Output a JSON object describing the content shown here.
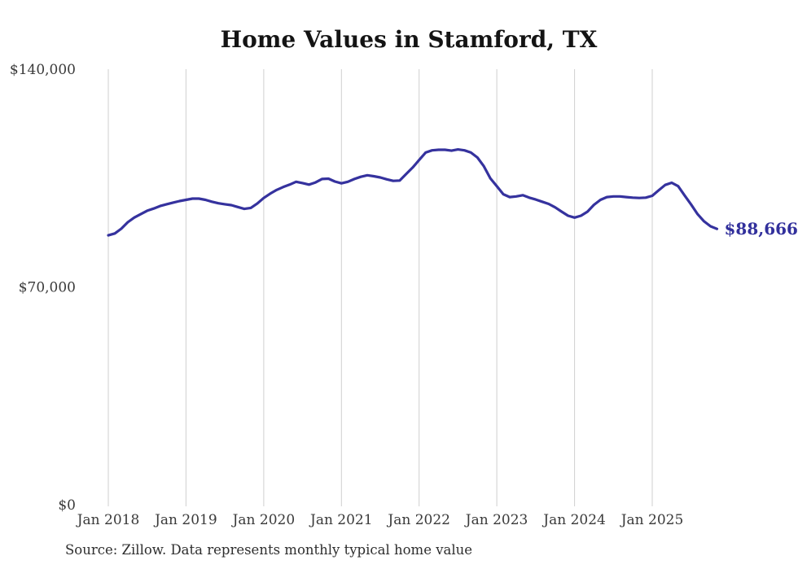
{
  "page": {
    "background": "#ffffff"
  },
  "chart_data": {
    "type": "line",
    "title": "Home Values in Stamford, TX",
    "source_note": "Source: Zillow. Data represents monthly typical home value",
    "end_value_label": "$88,666",
    "end_value": 88666,
    "xlabel": "",
    "ylabel": "",
    "ylim": [
      0,
      140000
    ],
    "grid": "vertical-only",
    "legend": "none",
    "y_ticks": [
      {
        "label": "$140,000",
        "value": 140000
      },
      {
        "label": "$70,000",
        "value": 70000
      },
      {
        "label": "$0",
        "value": 0
      }
    ],
    "x_ticks": [
      {
        "label": "Jan 2018",
        "month_index": 0
      },
      {
        "label": "Jan 2019",
        "month_index": 12
      },
      {
        "label": "Jan 2020",
        "month_index": 24
      },
      {
        "label": "Jan 2021",
        "month_index": 36
      },
      {
        "label": "Jan 2022",
        "month_index": 48
      },
      {
        "label": "Jan 2023",
        "month_index": 60
      },
      {
        "label": "Jan 2024",
        "month_index": 72
      },
      {
        "label": "Jan 2025",
        "month_index": 84
      }
    ],
    "series": [
      {
        "name": "Monthly typical home value",
        "x": [
          "2018-01",
          "2018-02",
          "2018-03",
          "2018-04",
          "2018-05",
          "2018-06",
          "2018-07",
          "2018-08",
          "2018-09",
          "2018-10",
          "2018-11",
          "2018-12",
          "2019-01",
          "2019-02",
          "2019-03",
          "2019-04",
          "2019-05",
          "2019-06",
          "2019-07",
          "2019-08",
          "2019-09",
          "2019-10",
          "2019-11",
          "2019-12",
          "2020-01",
          "2020-02",
          "2020-03",
          "2020-04",
          "2020-05",
          "2020-06",
          "2020-07",
          "2020-08",
          "2020-09",
          "2020-10",
          "2020-11",
          "2020-12",
          "2021-01",
          "2021-02",
          "2021-03",
          "2021-04",
          "2021-05",
          "2021-06",
          "2021-07",
          "2021-08",
          "2021-09",
          "2021-10",
          "2021-11",
          "2021-12",
          "2022-01",
          "2022-02",
          "2022-03",
          "2022-04",
          "2022-05",
          "2022-06",
          "2022-07",
          "2022-08",
          "2022-09",
          "2022-10",
          "2022-11",
          "2022-12",
          "2023-01",
          "2023-02",
          "2023-03",
          "2023-04",
          "2023-05",
          "2023-06",
          "2023-07",
          "2023-08",
          "2023-09",
          "2023-10",
          "2023-11",
          "2023-12",
          "2024-01",
          "2024-02",
          "2024-03",
          "2024-04",
          "2024-05",
          "2024-06",
          "2024-07",
          "2024-08",
          "2024-09",
          "2024-10",
          "2024-11",
          "2024-12",
          "2025-01",
          "2025-02",
          "2025-03",
          "2025-04",
          "2025-05",
          "2025-06",
          "2025-07",
          "2025-08",
          "2025-09",
          "2025-10",
          "2025-11"
        ],
        "values": [
          86600,
          87200,
          88700,
          90800,
          92300,
          93400,
          94500,
          95200,
          96000,
          96600,
          97100,
          97600,
          98000,
          98400,
          98400,
          98000,
          97400,
          96900,
          96600,
          96300,
          95700,
          95100,
          95400,
          96800,
          98600,
          100000,
          101200,
          102100,
          102900,
          103800,
          103400,
          102900,
          103600,
          104700,
          104800,
          103900,
          103300,
          103800,
          104700,
          105400,
          105900,
          105600,
          105200,
          104600,
          104100,
          104200,
          106300,
          108400,
          110800,
          113200,
          113900,
          114100,
          114100,
          113800,
          114200,
          113900,
          113200,
          111600,
          108800,
          104900,
          102400,
          99800,
          98900,
          99100,
          99500,
          98700,
          98100,
          97400,
          96700,
          95600,
          94200,
          92900,
          92300,
          92900,
          94200,
          96400,
          98000,
          98900,
          99100,
          99100,
          98900,
          98700,
          98600,
          98700,
          99300,
          101100,
          102800,
          103500,
          102400,
          99400,
          96500,
          93400,
          91100,
          89500,
          88666
        ]
      }
    ],
    "colors": {
      "line": "#35329e",
      "grid": "#cfcfcf",
      "tick_text": "#3a3a3a",
      "title_text": "#141414",
      "source_text": "#2e2e2e",
      "value_label": "#32309c",
      "background": "#ffffff"
    }
  }
}
